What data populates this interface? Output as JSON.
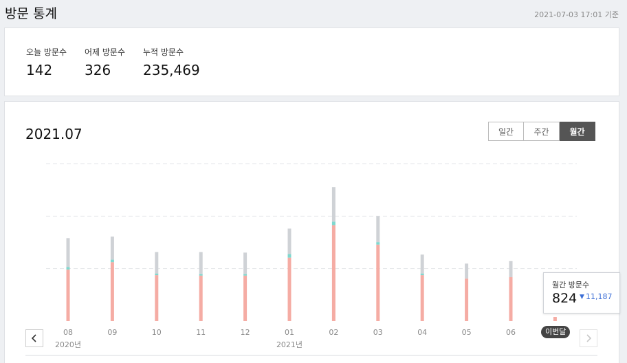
{
  "header": {
    "title": "방문 통계",
    "timestamp": "2021-07-03 17:01 기준"
  },
  "summary": {
    "stats": [
      {
        "label": "오늘 방문수",
        "value": "142"
      },
      {
        "label": "어제 방문수",
        "value": "326"
      },
      {
        "label": "누적 방문수",
        "value": "235,469"
      }
    ]
  },
  "chart_panel": {
    "title": "2021.07",
    "tabs": [
      {
        "label": "일간",
        "active": false
      },
      {
        "label": "주간",
        "active": false
      },
      {
        "label": "월간",
        "active": true
      }
    ],
    "current_badge": "이번달",
    "tooltip": {
      "label": "월간 방문수",
      "value": "824",
      "delta": "11,187",
      "delta_direction": "down"
    },
    "nav": {
      "prev_icon": "chevron-left-icon",
      "next_icon": "chevron-right-icon"
    }
  },
  "chart_data": {
    "type": "bar",
    "stacked": true,
    "categories": [
      "08",
      "09",
      "10",
      "11",
      "12",
      "01",
      "02",
      "03",
      "04",
      "05",
      "06",
      "07"
    ],
    "year_labels": [
      {
        "category": "08",
        "text": "2020년"
      },
      {
        "category": "01",
        "text": "2021년"
      }
    ],
    "series": [
      {
        "color": "#f5aca4",
        "values": [
          10300,
          11800,
          9200,
          9100,
          9100,
          12700,
          19200,
          15300,
          9200,
          8500,
          8800,
          824
        ]
      },
      {
        "color": "#7fd8cf",
        "values": [
          500,
          500,
          300,
          300,
          300,
          700,
          700,
          500,
          300,
          0,
          0,
          0
        ]
      },
      {
        "color": "#cfd2d6",
        "values": [
          5800,
          4600,
          4300,
          4400,
          4300,
          5100,
          6900,
          5200,
          3800,
          3000,
          3200,
          0
        ]
      }
    ],
    "ylim": [
      0,
      31500
    ],
    "grid": true,
    "grid_style": "dashed"
  },
  "colors": {
    "accent": "#555555",
    "delta_down": "#3d6fd6",
    "current_badge": "#444444"
  }
}
